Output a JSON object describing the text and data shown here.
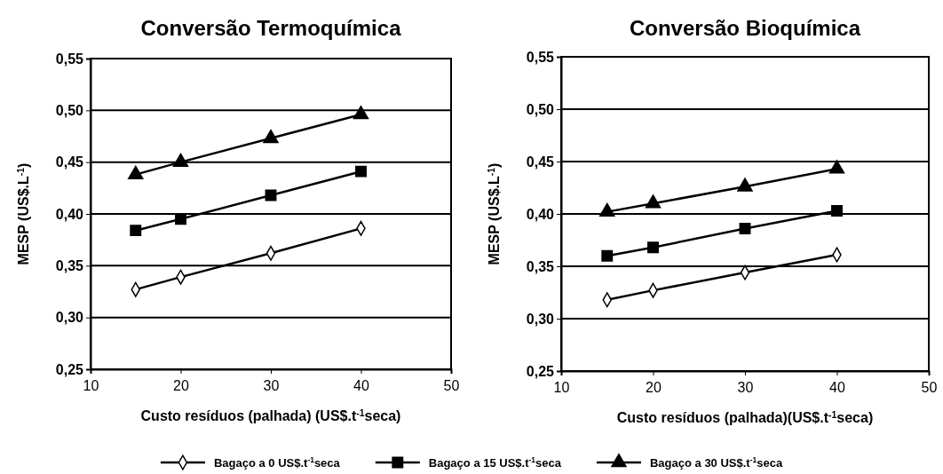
{
  "chart_data": [
    {
      "type": "line",
      "title": "Conversão Termoquímica",
      "xlabel": "Custo resíduos (palhada) (US$.t$^{-1}$seca)",
      "ylabel": "MESP (US$.L$^{-1}$)",
      "x": [
        15,
        20,
        30,
        40
      ],
      "series": [
        {
          "name": "Bagaço a 0 US$.t$^{-1}$seca",
          "color": "#000000",
          "marker": "diamond",
          "values": [
            0.327,
            0.339,
            0.362,
            0.386
          ]
        },
        {
          "name": "Bagaço a 15 US$.t$^{-1}$seca",
          "color": "#000000",
          "marker": "square",
          "values": [
            0.384,
            0.395,
            0.418,
            0.441
          ]
        },
        {
          "name": "Bagaço a 30 US$.t$^{-1}$seca",
          "color": "#000000",
          "marker": "triangle",
          "values": [
            0.438,
            0.45,
            0.473,
            0.496
          ]
        }
      ],
      "xlim": [
        10,
        50
      ],
      "xticks": [
        10,
        20,
        30,
        40,
        50
      ],
      "ylim": [
        0.25,
        0.55
      ],
      "yticks": [
        {
          "value": 0.25,
          "label": "0,25"
        },
        {
          "value": 0.3,
          "label": "0,30"
        },
        {
          "value": 0.35,
          "label": "0,35"
        },
        {
          "value": 0.4,
          "label": "0,40"
        },
        {
          "value": 0.45,
          "label": "0,45"
        },
        {
          "value": 0.5,
          "label": "0,50"
        },
        {
          "value": 0.55,
          "label": "0,55"
        }
      ],
      "grid": "y",
      "legend": "bottom",
      "line_style": "solid"
    },
    {
      "type": "line",
      "title": "Conversão Bioquímica",
      "xlabel": "Custo resíduos (palhada)(US$.t$^{-1}$seca)",
      "ylabel": "MESP (US$.L$^{-1}$)",
      "x": [
        15,
        20,
        30,
        40
      ],
      "series": [
        {
          "color": "#000000",
          "marker": "diamond",
          "values": [
            0.318,
            0.327,
            0.344,
            0.361
          ]
        },
        {
          "color": "#000000",
          "marker": "square",
          "values": [
            0.36,
            0.368,
            0.386,
            0.403
          ]
        },
        {
          "color": "#000000",
          "marker": "triangle",
          "values": [
            0.402,
            0.41,
            0.426,
            0.443
          ]
        }
      ],
      "xlim": [
        10,
        50
      ],
      "xticks": [
        10,
        20,
        30,
        40,
        50
      ],
      "ylim": [
        0.25,
        0.55
      ],
      "yticks": [
        {
          "value": 0.25,
          "label": "0,25"
        },
        {
          "value": 0.3,
          "label": "0,30"
        },
        {
          "value": 0.35,
          "label": "0,35"
        },
        {
          "value": 0.4,
          "label": "0,40"
        },
        {
          "value": 0.45,
          "label": "0,45"
        },
        {
          "value": 0.5,
          "label": "0,50"
        },
        {
          "value": 0.55,
          "label": "0,55"
        }
      ],
      "grid": "y",
      "line_style": "solid"
    }
  ]
}
